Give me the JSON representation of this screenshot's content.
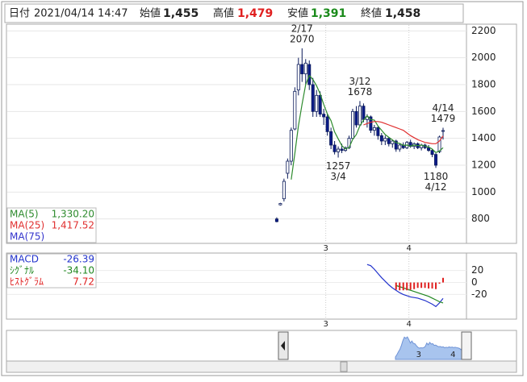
{
  "header": {
    "items": [
      {
        "label": "日付",
        "value": "2021/04/14 14:47"
      },
      {
        "label": "始値",
        "value": "1,455"
      },
      {
        "label": "高値",
        "value": "1,479"
      },
      {
        "label": "安値",
        "value": "1,391"
      },
      {
        "label": "終値",
        "value": "1,458"
      }
    ]
  },
  "chart_data": [
    {
      "type": "candlestick",
      "categories": [
        null,
        null,
        null,
        null,
        null,
        null,
        null,
        null,
        null,
        null,
        null,
        null,
        null,
        null,
        "3",
        null,
        null,
        null,
        null,
        null,
        null,
        null,
        null,
        null,
        null,
        null,
        null,
        null,
        null,
        null,
        null,
        null,
        null,
        null,
        null,
        null,
        null,
        "4",
        null,
        null,
        null,
        null,
        null,
        null,
        null,
        null,
        null
      ],
      "open": [
        800,
        905,
        950,
        1140,
        1230,
        1470,
        1760,
        1950,
        1880,
        1950,
        1800,
        1600,
        1720,
        1580,
        1560,
        1450,
        1350,
        1300,
        1320,
        1310,
        1330,
        1400,
        1600,
        1500,
        1640,
        1540,
        1560,
        1460,
        1480,
        1420,
        1380,
        1400,
        1360,
        1380,
        1320,
        1350,
        1330,
        1370,
        1340,
        1360,
        1330,
        1350,
        1330,
        1310,
        1280,
        1300,
        1455
      ],
      "high": [
        812,
        920,
        1100,
        1250,
        1480,
        1780,
        2000,
        2070,
        1990,
        1980,
        1850,
        1760,
        1750,
        1620,
        1580,
        1480,
        1380,
        1340,
        1360,
        1340,
        1420,
        1620,
        1640,
        1678,
        1660,
        1580,
        1570,
        1500,
        1490,
        1440,
        1420,
        1410,
        1390,
        1390,
        1360,
        1370,
        1380,
        1390,
        1370,
        1370,
        1360,
        1360,
        1350,
        1320,
        1290,
        1420,
        1479
      ],
      "low": [
        775,
        900,
        930,
        1100,
        1200,
        1460,
        1720,
        1820,
        1800,
        1760,
        1560,
        1560,
        1560,
        1500,
        1420,
        1320,
        1280,
        1257,
        1290,
        1300,
        1320,
        1390,
        1480,
        1490,
        1520,
        1480,
        1440,
        1420,
        1390,
        1350,
        1350,
        1340,
        1330,
        1300,
        1300,
        1320,
        1320,
        1330,
        1320,
        1320,
        1310,
        1320,
        1300,
        1260,
        1180,
        1290,
        1391
      ],
      "close": [
        780,
        915,
        1080,
        1230,
        1460,
        1750,
        1950,
        1880,
        1960,
        1800,
        1600,
        1720,
        1580,
        1560,
        1450,
        1350,
        1300,
        1320,
        1310,
        1330,
        1400,
        1600,
        1500,
        1640,
        1540,
        1560,
        1460,
        1480,
        1420,
        1380,
        1400,
        1360,
        1380,
        1320,
        1350,
        1330,
        1370,
        1340,
        1360,
        1330,
        1350,
        1330,
        1310,
        1280,
        1200,
        1410,
        1458
      ],
      "up_color": "#ffffff",
      "down_color": "#0a1a8a",
      "series": [
        {
          "name": "MA(5)",
          "color": "#2e8b2e",
          "values": [
            null,
            null,
            null,
            null,
            1093,
            1287,
            1494,
            1654,
            1800,
            1868,
            1838,
            1792,
            1732,
            1652,
            1582,
            1532,
            1448,
            1396,
            1346,
            1322,
            1332,
            1392,
            1428,
            1494,
            1536,
            1568,
            1540,
            1536,
            1492,
            1460,
            1428,
            1408,
            1388,
            1368,
            1362,
            1348,
            1350,
            1342,
            1350,
            1346,
            1350,
            1342,
            1336,
            1320,
            1294,
            1306,
            1330.2
          ],
          "value_labels": [
            null,
            null,
            null,
            null,
            null,
            null,
            null,
            null,
            null,
            null,
            null,
            null,
            null,
            null,
            null,
            null,
            null,
            null,
            null,
            null,
            null,
            null,
            null,
            null,
            null,
            null,
            null,
            null,
            null,
            null,
            null,
            null,
            null,
            null,
            null,
            null,
            null,
            null,
            null,
            null,
            null,
            null,
            null,
            null,
            null,
            null,
            "1,330.20"
          ]
        },
        {
          "name": "MA(25)",
          "color": "#e03030",
          "values": [
            null,
            null,
            null,
            null,
            null,
            null,
            null,
            null,
            null,
            null,
            null,
            null,
            null,
            null,
            null,
            null,
            null,
            null,
            null,
            null,
            null,
            null,
            null,
            null,
            1500,
            1510,
            1520,
            1525,
            1525,
            1520,
            1510,
            1500,
            1490,
            1480,
            1470,
            1460,
            1440,
            1420,
            1405,
            1390,
            1380,
            1370,
            1365,
            1360,
            1360,
            1380,
            1417.52
          ],
          "value_labels": [
            null,
            null,
            null,
            null,
            null,
            null,
            null,
            null,
            null,
            null,
            null,
            null,
            null,
            null,
            null,
            null,
            null,
            null,
            null,
            null,
            null,
            null,
            null,
            null,
            null,
            null,
            null,
            null,
            null,
            null,
            null,
            null,
            null,
            null,
            null,
            null,
            null,
            null,
            null,
            null,
            null,
            null,
            null,
            null,
            null,
            null,
            "1,417.52"
          ]
        },
        {
          "name": "MA(75)",
          "color": "#3333cc"
        }
      ],
      "ylim": [
        630,
        2250
      ],
      "yticks": [
        800,
        1000,
        1200,
        1400,
        1600,
        1800,
        2000,
        2200
      ],
      "grid": true,
      "annotations": [
        {
          "date": "2/17",
          "value": 2070
        },
        {
          "date": "3/4",
          "value": 1257
        },
        {
          "date": "3/12",
          "value": 1678
        },
        {
          "date": "4/14",
          "value": 1479
        },
        {
          "date": "4/12",
          "value": 1180
        }
      ]
    },
    {
      "type": "macd",
      "series": [
        {
          "name": "MACD",
          "type": "line",
          "color": "#2233cc",
          "values": [
            null,
            null,
            null,
            null,
            null,
            null,
            null,
            null,
            null,
            null,
            null,
            null,
            null,
            null,
            null,
            null,
            null,
            null,
            null,
            null,
            null,
            null,
            null,
            null,
            null,
            30,
            28,
            22,
            15,
            8,
            2,
            -4,
            -9,
            -13,
            -17,
            -20,
            -22,
            -24,
            -25,
            -26,
            -28,
            -30,
            -33,
            -36,
            -40,
            -34,
            -26.39
          ]
        },
        {
          "name": "ｼｸﾞﾅﾙ",
          "type": "line",
          "color": "#228822",
          "values": [
            null,
            null,
            null,
            null,
            null,
            null,
            null,
            null,
            null,
            null,
            null,
            null,
            null,
            null,
            null,
            null,
            null,
            null,
            null,
            null,
            null,
            null,
            null,
            null,
            null,
            null,
            null,
            null,
            null,
            null,
            null,
            null,
            null,
            -5,
            -7,
            -9,
            -11,
            -13,
            -15,
            -17,
            -19,
            -21,
            -23,
            -26,
            -29,
            -32,
            -34.1
          ],
          "value_labels": [
            null,
            null,
            null,
            null,
            null,
            null,
            null,
            null,
            null,
            null,
            null,
            null,
            null,
            null,
            null,
            null,
            null,
            null,
            null,
            null,
            null,
            null,
            null,
            null,
            null,
            null,
            null,
            null,
            null,
            null,
            null,
            null,
            null,
            null,
            null,
            null,
            null,
            null,
            null,
            null,
            null,
            null,
            null,
            null,
            null,
            null,
            "-34.10"
          ]
        },
        {
          "name": "ﾋｽﾄｸﾞﾗﾑ",
          "type": "bar",
          "color": "#e02020",
          "values": [
            null,
            null,
            null,
            null,
            null,
            null,
            null,
            null,
            null,
            null,
            null,
            null,
            null,
            null,
            null,
            null,
            null,
            null,
            null,
            null,
            null,
            null,
            null,
            null,
            null,
            null,
            null,
            null,
            null,
            null,
            null,
            null,
            null,
            -12,
            -13,
            -13,
            -13,
            -12,
            -11,
            -9,
            -9,
            -9,
            -10,
            -10,
            -11,
            -2,
            7.72
          ]
        }
      ],
      "ylim": [
        -61,
        49
      ],
      "yticks": [
        20,
        0,
        -20
      ],
      "grid": true
    }
  ]
}
